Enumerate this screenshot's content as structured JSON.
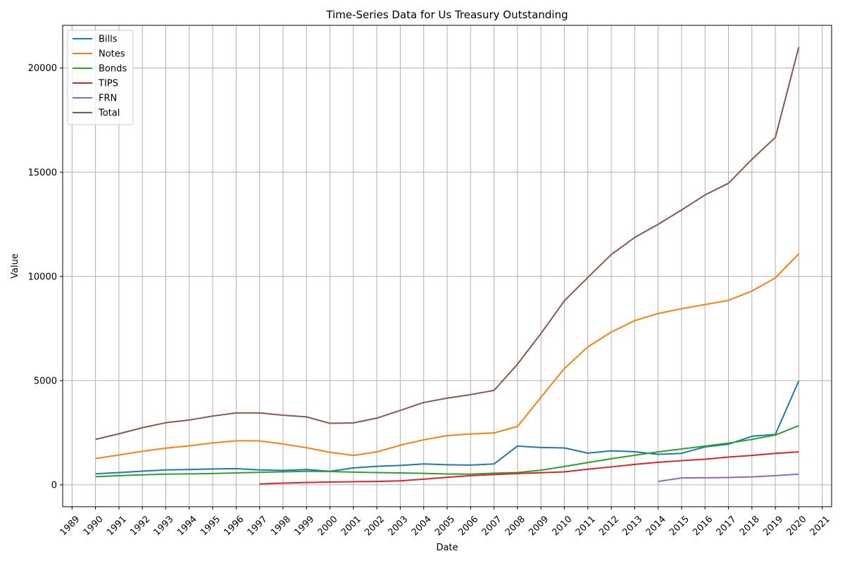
{
  "chart_data": {
    "type": "line",
    "title": "Time-Series Data for Us Treasury Outstanding",
    "xlabel": "Date",
    "ylabel": "Value",
    "x": [
      1990,
      1991,
      1992,
      1993,
      1994,
      1995,
      1996,
      1997,
      1998,
      1999,
      2000,
      2001,
      2002,
      2003,
      2004,
      2005,
      2006,
      2007,
      2008,
      2009,
      2010,
      2011,
      2012,
      2013,
      2014,
      2015,
      2016,
      2017,
      2018,
      2019,
      2020
    ],
    "xlim": [
      1988.6,
      2021.4
    ],
    "ylim": [
      -1050,
      22050
    ],
    "x_ticks": [
      1989,
      1990,
      1991,
      1992,
      1993,
      1994,
      1995,
      1996,
      1997,
      1998,
      1999,
      2000,
      2001,
      2002,
      2003,
      2004,
      2005,
      2006,
      2007,
      2008,
      2009,
      2010,
      2011,
      2012,
      2013,
      2014,
      2015,
      2016,
      2017,
      2018,
      2019,
      2020,
      2021
    ],
    "y_ticks": [
      0,
      5000,
      10000,
      15000,
      20000
    ],
    "grid": true,
    "legend_position": "top-left",
    "series": [
      {
        "name": "Bills",
        "color": "#1f77b4",
        "values": [
          527,
          590,
          657,
          714,
          734,
          760,
          777,
          715,
          691,
          737,
          647,
          811,
          889,
          929,
          1003,
          962,
          945,
          1003,
          1860,
          1790,
          1770,
          1520,
          1630,
          1590,
          1460,
          1510,
          1820,
          1950,
          2330,
          2420,
          4990
        ]
      },
      {
        "name": "Notes",
        "color": "#ff7f0e",
        "values": [
          1265,
          1430,
          1610,
          1760,
          1870,
          2010,
          2110,
          2110,
          1960,
          1780,
          1560,
          1410,
          1580,
          1900,
          2160,
          2360,
          2440,
          2490,
          2800,
          4200,
          5580,
          6620,
          7330,
          7880,
          8220,
          8450,
          8650,
          8850,
          9300,
          9930,
          11090
        ]
      },
      {
        "name": "Bonds",
        "color": "#2ca02c",
        "values": [
          390,
          440,
          480,
          510,
          525,
          540,
          570,
          600,
          620,
          650,
          640,
          610,
          590,
          570,
          550,
          520,
          510,
          560,
          590,
          700,
          880,
          1070,
          1250,
          1420,
          1580,
          1720,
          1860,
          2000,
          2180,
          2390,
          2840
        ]
      },
      {
        "name": "TIPS",
        "color": "#d62728",
        "values": [
          null,
          null,
          null,
          null,
          null,
          null,
          null,
          40,
          80,
          110,
          130,
          150,
          160,
          190,
          270,
          360,
          440,
          490,
          540,
          580,
          620,
          750,
          860,
          980,
          1080,
          1160,
          1230,
          1330,
          1410,
          1510,
          1580
        ]
      },
      {
        "name": "FRN",
        "color": "#9467bd",
        "values": [
          null,
          null,
          null,
          null,
          null,
          null,
          null,
          null,
          null,
          null,
          null,
          null,
          null,
          null,
          null,
          null,
          null,
          null,
          null,
          null,
          null,
          null,
          null,
          null,
          160,
          330,
          340,
          350,
          380,
          440,
          510
        ]
      },
      {
        "name": "Total",
        "color": "#8c564b",
        "values": [
          2180,
          2450,
          2740,
          2980,
          3110,
          3300,
          3450,
          3450,
          3340,
          3260,
          2950,
          2970,
          3200,
          3570,
          3950,
          4160,
          4330,
          4530,
          5790,
          7260,
          8830,
          9950,
          11050,
          11870,
          12500,
          13190,
          13910,
          14470,
          15620,
          16670,
          21010
        ]
      }
    ]
  }
}
